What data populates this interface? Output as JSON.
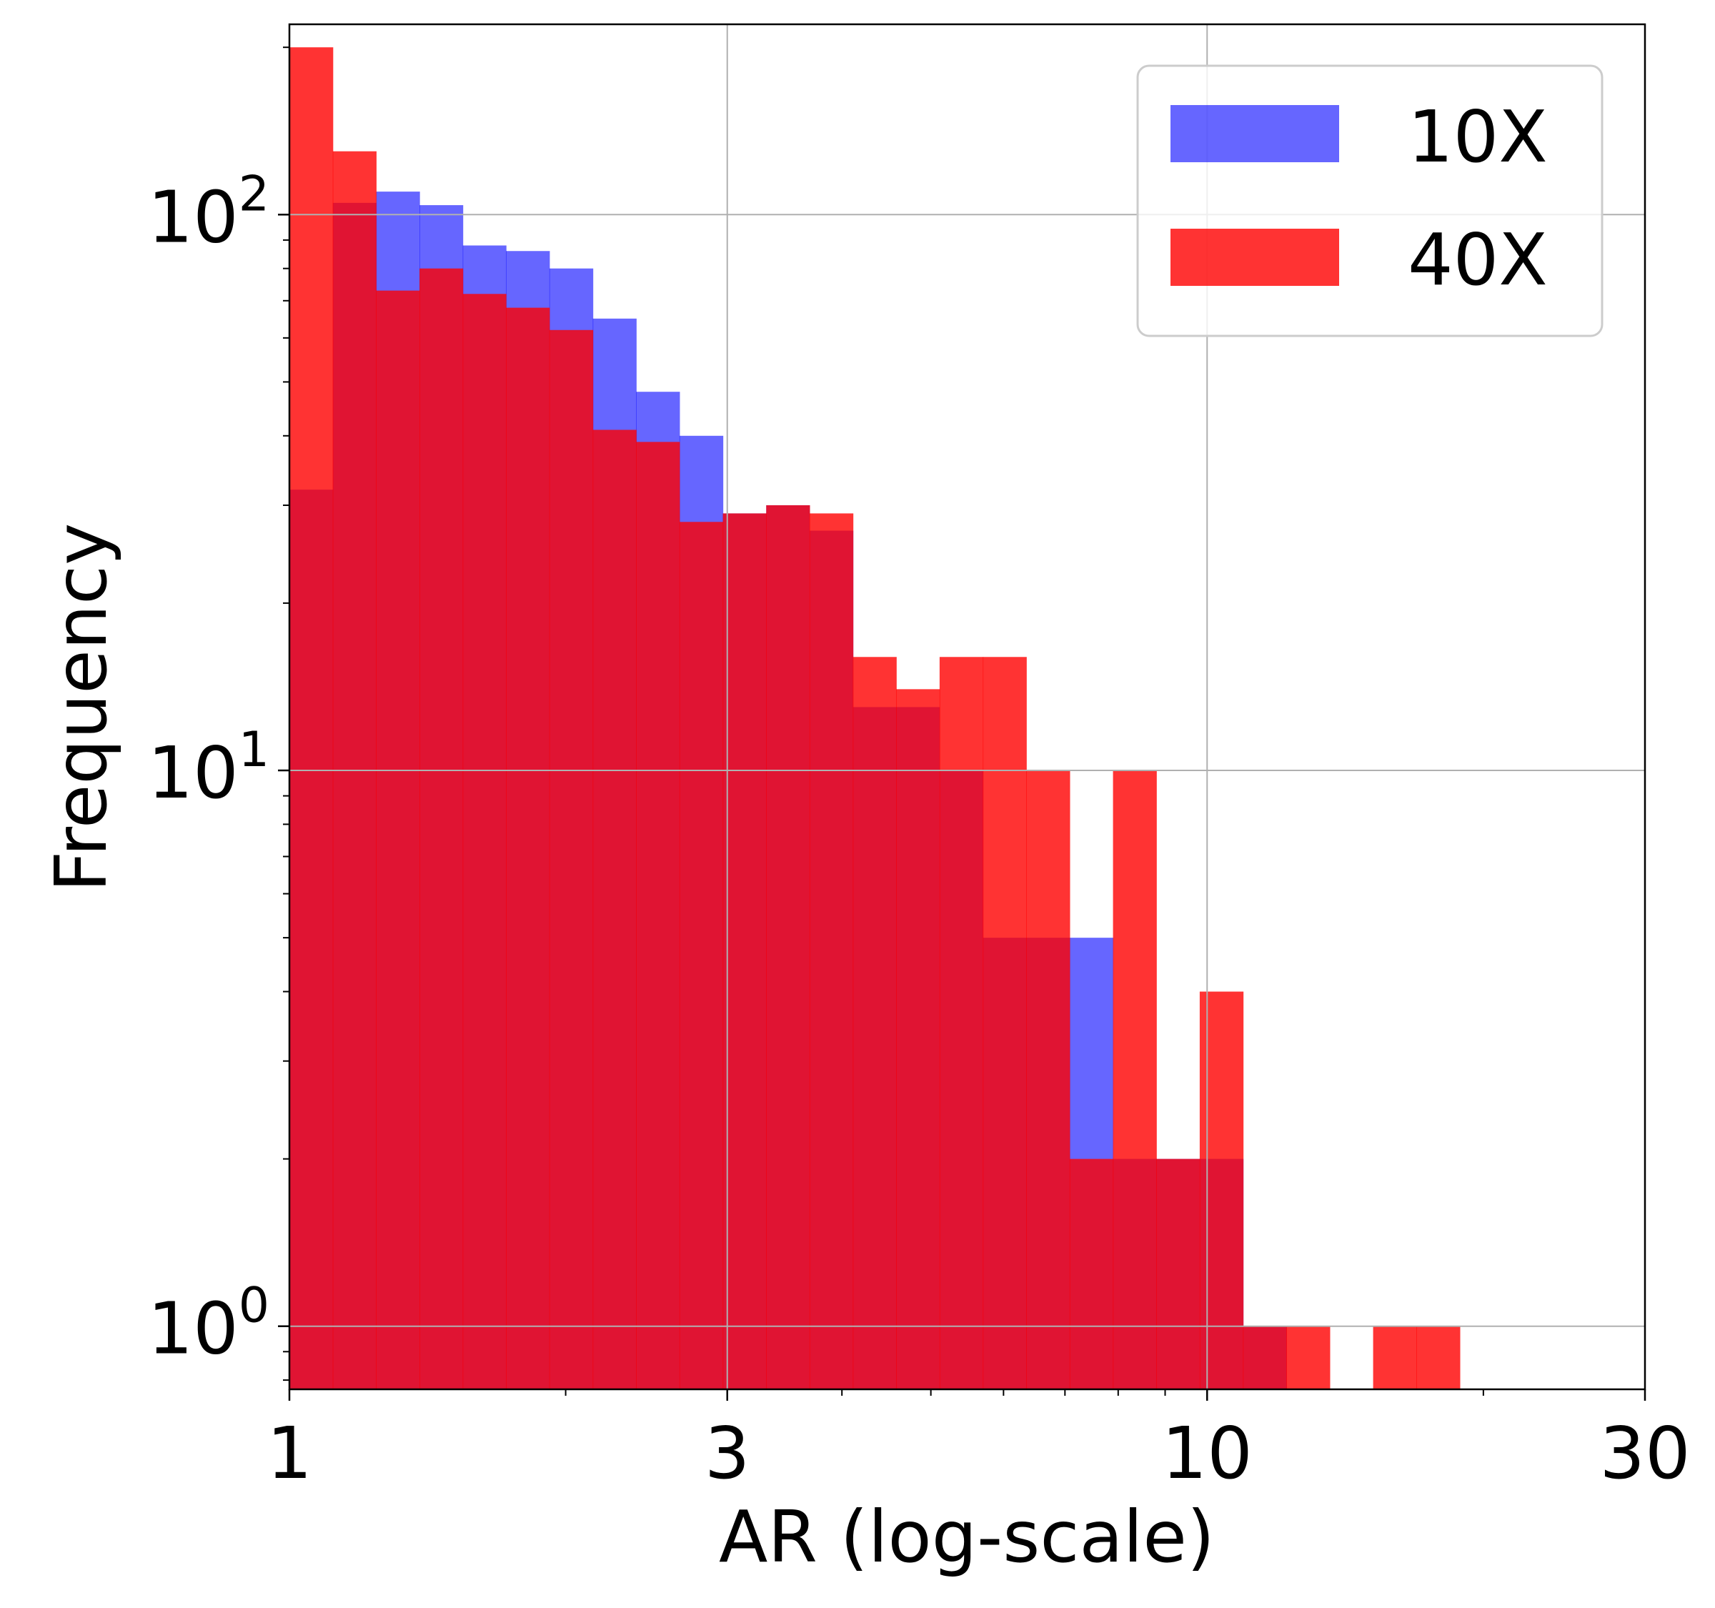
{
  "chart_data": {
    "type": "bar",
    "xlabel": "AR (log-scale)",
    "ylabel": "Frequency",
    "xscale": "log",
    "yscale": "log",
    "xlim": [
      1,
      30
    ],
    "ylim": [
      0.77,
      220
    ],
    "x_ticks": [
      {
        "value": 1,
        "label": "1"
      },
      {
        "value": 3,
        "label": "3"
      },
      {
        "value": 10,
        "label": "10"
      },
      {
        "value": 30,
        "label": "30"
      }
    ],
    "y_ticks": [
      {
        "value": 1,
        "base": "10",
        "exp": "0"
      },
      {
        "value": 10,
        "base": "10",
        "exp": "1"
      },
      {
        "value": 100,
        "base": "10",
        "exp": "2"
      }
    ],
    "grid": true,
    "legend": {
      "placement": "top-right"
    },
    "bin_edges": [
      1.0,
      1.115,
      1.243,
      1.386,
      1.545,
      1.722,
      1.92,
      2.141,
      2.387,
      2.661,
      2.967,
      3.308,
      3.688,
      4.112,
      4.584,
      5.111,
      5.698,
      6.353,
      7.083,
      7.897,
      8.804,
      9.816,
      10.944,
      12.202,
      13.603,
      15.167,
      16.909,
      18.852
    ],
    "series": [
      {
        "name": "10X",
        "color": "#0000ff",
        "opacity": 0.6,
        "values": [
          32,
          105,
          110,
          104,
          88,
          86,
          80,
          65,
          48,
          40,
          29,
          30,
          27,
          13,
          13,
          10,
          5,
          5,
          5,
          2,
          2,
          2,
          1,
          0,
          0,
          0,
          0
        ]
      },
      {
        "name": "40X",
        "color": "#ff0000",
        "opacity": 0.8,
        "values": [
          200,
          130,
          73,
          80,
          72,
          68,
          62,
          41,
          39,
          28,
          29,
          30,
          29,
          16,
          14,
          16,
          16,
          10,
          2,
          10,
          2,
          4,
          1,
          1,
          0,
          1,
          1
        ]
      }
    ]
  }
}
